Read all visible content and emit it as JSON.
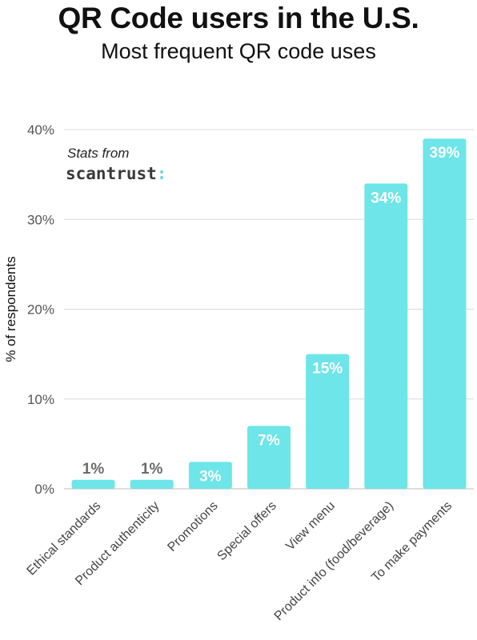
{
  "header": {
    "title": "QR Code users in the U.S.",
    "subtitle": "Most frequent QR code uses"
  },
  "attribution": {
    "prefix": "Stats from",
    "brand": "scantrust",
    "brand_suffix": ":"
  },
  "colors": {
    "bar": "#6ee5e8",
    "grid": "#d9d9d9"
  },
  "chart_data": {
    "type": "bar",
    "title": "QR Code users in the U.S.",
    "subtitle": "Most frequent QR code uses",
    "xlabel": "",
    "ylabel": "% of respondents",
    "ylim": [
      0,
      40
    ],
    "yticks": [
      0,
      10,
      20,
      30,
      40
    ],
    "ytick_labels": [
      "0%",
      "10%",
      "20%",
      "30%",
      "40%"
    ],
    "grid": true,
    "categories": [
      "Ethical standards",
      "Product authenticity",
      "Promotions",
      "Special offers",
      "View menu",
      "Product info (food/beverage)",
      "To make payments"
    ],
    "values": [
      1,
      1,
      3,
      7,
      15,
      34,
      39
    ],
    "data_labels": [
      "1%",
      "1%",
      "3%",
      "7%",
      "15%",
      "34%",
      "39%"
    ]
  }
}
